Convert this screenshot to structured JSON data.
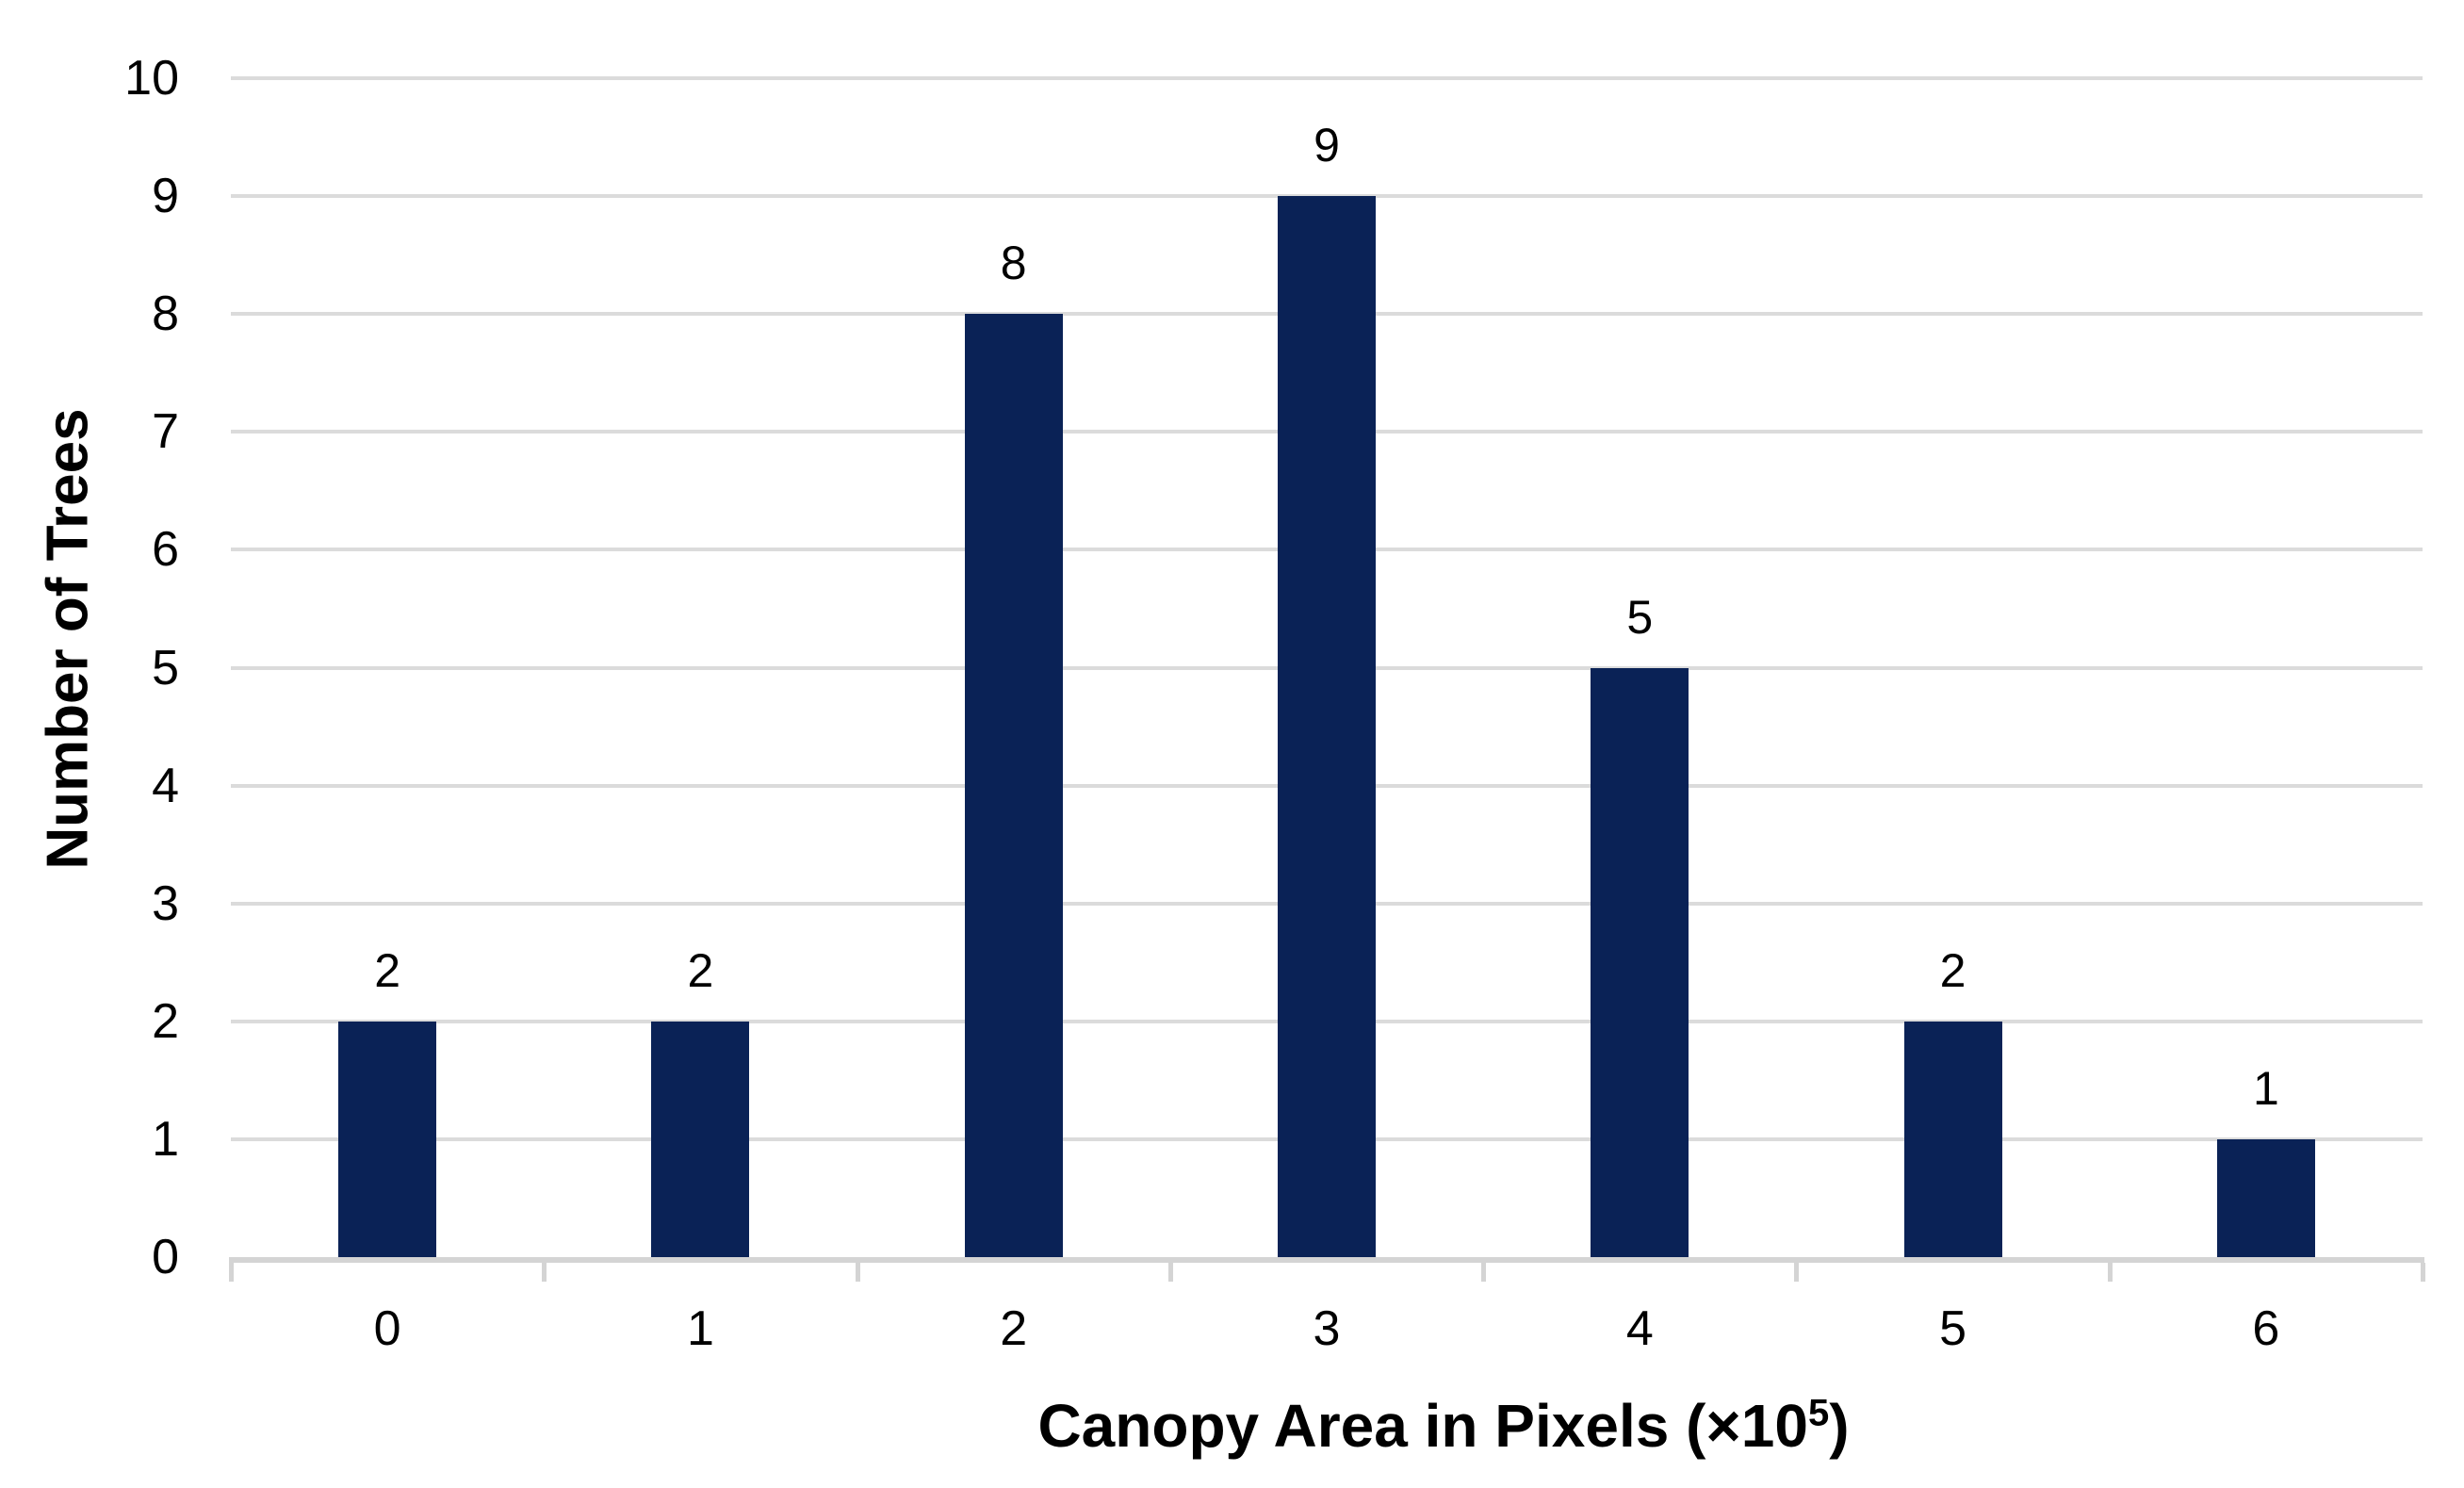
{
  "chart_data": {
    "type": "bar",
    "title": "",
    "categories": [
      "0",
      "1",
      "2",
      "3",
      "4",
      "5",
      "6"
    ],
    "values": [
      2,
      2,
      8,
      9,
      5,
      2,
      1
    ],
    "show_data_labels": true,
    "data_labels": [
      "2",
      "2",
      "8",
      "9",
      "5",
      "2",
      "1"
    ],
    "xlabel": "Canopy Area in Pixels (×10⁵)",
    "xlabel_parts": {
      "prefix": "Canopy Area in Pixels (×10",
      "sup": "5",
      "suffix": ")"
    },
    "ylabel": "Number of Trees",
    "ylim": [
      0,
      10
    ],
    "ytick_step": 1,
    "yticks": [
      "0",
      "1",
      "2",
      "3",
      "4",
      "5",
      "6",
      "7",
      "8",
      "9",
      "10"
    ],
    "grid": "horizontal",
    "legend": "none",
    "colors": {
      "bar": "#0A2256",
      "gridline": "#DBDBDB",
      "axis_line": "#D4D4D4",
      "text": "#000000",
      "background": "#FFFFFF"
    }
  }
}
